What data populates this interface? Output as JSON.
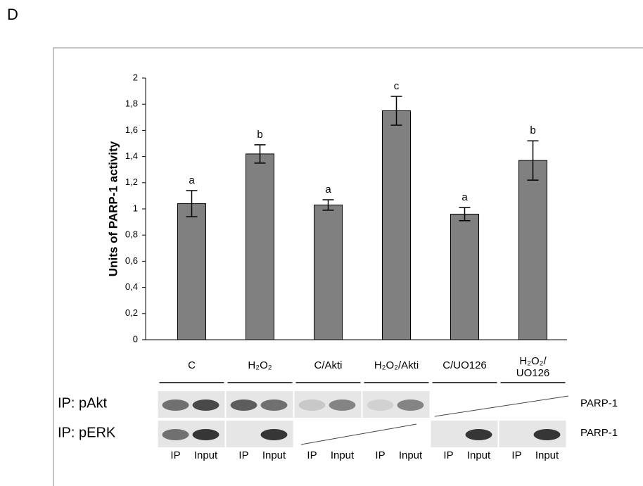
{
  "panel_label": "D",
  "chart_data": {
    "type": "bar",
    "ylabel": "Units of PARP-1 activity",
    "categories": [
      "C",
      "H₂O₂",
      "C/Akti",
      "H₂O₂/Akti",
      "C/UO126",
      "H₂O₂/\nUO126"
    ],
    "values": [
      1.04,
      1.42,
      1.03,
      1.75,
      0.96,
      1.37
    ],
    "errors": [
      0.1,
      0.07,
      0.04,
      0.11,
      0.05,
      0.15
    ],
    "value_labels": [
      "a",
      "b",
      "a",
      "c",
      "a",
      "b"
    ],
    "color": "#808080",
    "ylim": [
      0,
      2
    ],
    "yticks": [
      0,
      {
        "value": 0.2,
        "label": "0,2"
      },
      {
        "value": 0.4,
        "label": "0,4"
      },
      {
        "value": 0.6,
        "label": "0,6"
      },
      {
        "value": 0.8,
        "label": "0,8"
      },
      1,
      {
        "value": 1.2,
        "label": "1,2"
      },
      {
        "value": 1.4,
        "label": "1,4"
      },
      {
        "value": 1.6,
        "label": "1,6"
      },
      {
        "value": 1.8,
        "label": "1,8"
      },
      2
    ]
  },
  "blot": {
    "rows": [
      {
        "label": "IP: pAkt",
        "protein": "PARP-1"
      },
      {
        "label": "IP: pERK",
        "protein": "PARP-1"
      }
    ],
    "lanes": [
      "IP",
      "Input"
    ]
  }
}
